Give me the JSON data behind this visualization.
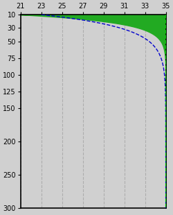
{
  "x_min": 21,
  "x_max": 35,
  "y_min": 10,
  "y_max": 300,
  "x_ticks": [
    21,
    23,
    25,
    27,
    29,
    31,
    33,
    35
  ],
  "y_ticks": [
    10,
    30,
    50,
    75,
    100,
    125,
    150,
    200,
    250,
    300
  ],
  "bg_color": "#d0d0d0",
  "grid_color": "#aaaaaa",
  "fill_color": "#22aa22",
  "blue_line_color": "#0000cc",
  "green_line_color": "#00cc00",
  "figsize": [
    2.5,
    3.1
  ],
  "dpi": 100
}
